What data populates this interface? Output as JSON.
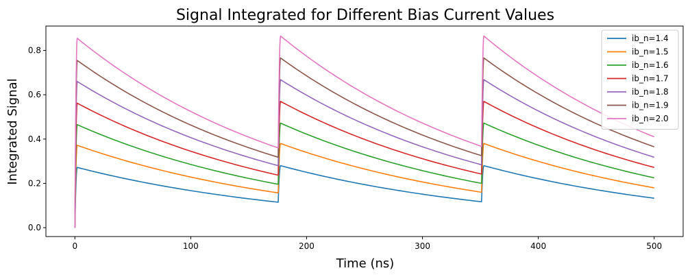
{
  "chart_data": {
    "type": "line",
    "title": "Signal Integrated for Different Bias Current Values",
    "xlabel": "Time (ns)",
    "ylabel": "Integrated Signal",
    "xlim": [
      -25,
      525
    ],
    "ylim": [
      -0.04,
      0.91
    ],
    "xticks": [
      0,
      100,
      200,
      300,
      400,
      500
    ],
    "yticks": [
      0.0,
      0.2,
      0.4,
      0.6,
      0.8
    ],
    "xtick_labels": [
      "0",
      "100",
      "200",
      "300",
      "400",
      "500"
    ],
    "ytick_labels": [
      "0.0",
      "0.2",
      "0.4",
      "0.6",
      "0.8"
    ],
    "grid": false,
    "legend_position": "top-right",
    "pulse_times": [
      0,
      175.5,
      351
    ],
    "series": [
      {
        "name": "ib_n=1.4",
        "color": "#1f77b4",
        "peaks": [
          0.272,
          0.28,
          0.28
        ],
        "valleys": [
          0.115,
          0.117,
          0.133
        ]
      },
      {
        "name": "ib_n=1.5",
        "color": "#ff7f0e",
        "peaks": [
          0.372,
          0.38,
          0.38
        ],
        "valleys": [
          0.157,
          0.16,
          0.18
        ]
      },
      {
        "name": "ib_n=1.6",
        "color": "#2ca02c",
        "peaks": [
          0.465,
          0.472,
          0.472
        ],
        "valleys": [
          0.196,
          0.2,
          0.225
        ]
      },
      {
        "name": "ib_n=1.7",
        "color": "#d62728",
        "peaks": [
          0.562,
          0.57,
          0.57
        ],
        "valleys": [
          0.237,
          0.242,
          0.272
        ]
      },
      {
        "name": "ib_n=1.8",
        "color": "#9467bd",
        "peaks": [
          0.66,
          0.668,
          0.668
        ],
        "valleys": [
          0.28,
          0.284,
          0.318
        ]
      },
      {
        "name": "ib_n=1.9",
        "color": "#8c564b",
        "peaks": [
          0.755,
          0.766,
          0.766
        ],
        "valleys": [
          0.318,
          0.325,
          0.365
        ]
      },
      {
        "name": "ib_n=2.0",
        "color": "#e377c2",
        "peaks": [
          0.855,
          0.865,
          0.865
        ],
        "valleys": [
          0.36,
          0.367,
          0.41
        ]
      }
    ]
  }
}
